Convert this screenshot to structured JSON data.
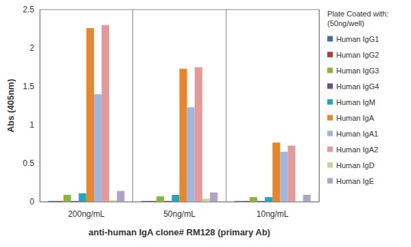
{
  "chart_data": {
    "type": "bar",
    "x_label": "anti-human IgA clone# RM128 (primary Ab)",
    "y_label": "Abs (405nm)",
    "legend_title": "Plate Coated with:\n(50ng/well)",
    "categories": [
      "200ng/mL",
      "50ng/mL",
      "10ng/mL"
    ],
    "series": [
      {
        "name": "Human IgG1",
        "color": "#3a6ea5",
        "values": [
          0.01,
          0.01,
          0.01
        ]
      },
      {
        "name": "Human IgG2",
        "color": "#b03a3a",
        "values": [
          0.01,
          0.01,
          0.01
        ]
      },
      {
        "name": "Human IgG3",
        "color": "#8db33e",
        "values": [
          0.09,
          0.07,
          0.06
        ]
      },
      {
        "name": "Human IgG4",
        "color": "#6a4c93",
        "values": [
          0.01,
          0.01,
          0.01
        ]
      },
      {
        "name": "Human IgM",
        "color": "#2aa5b8",
        "values": [
          0.11,
          0.09,
          0.06
        ]
      },
      {
        "name": "Human IgA",
        "color": "#e8862b",
        "values": [
          2.26,
          1.73,
          0.77
        ]
      },
      {
        "name": "Human IgA1",
        "color": "#9fb6e0",
        "values": [
          1.4,
          1.23,
          0.65
        ]
      },
      {
        "name": "Human IgA2",
        "color": "#e59a9a",
        "values": [
          2.3,
          1.75,
          0.73
        ]
      },
      {
        "name": "Human IgD",
        "color": "#c3d99a",
        "values": [
          0.02,
          0.04,
          0.01
        ]
      },
      {
        "name": "Human IgE",
        "color": "#b3a2c7",
        "values": [
          0.14,
          0.12,
          0.09
        ]
      }
    ],
    "ylim": [
      0,
      2.5
    ],
    "yticks": [
      0,
      0.5,
      1,
      1.5,
      2,
      2.5
    ],
    "grid": false,
    "legend": "right"
  }
}
